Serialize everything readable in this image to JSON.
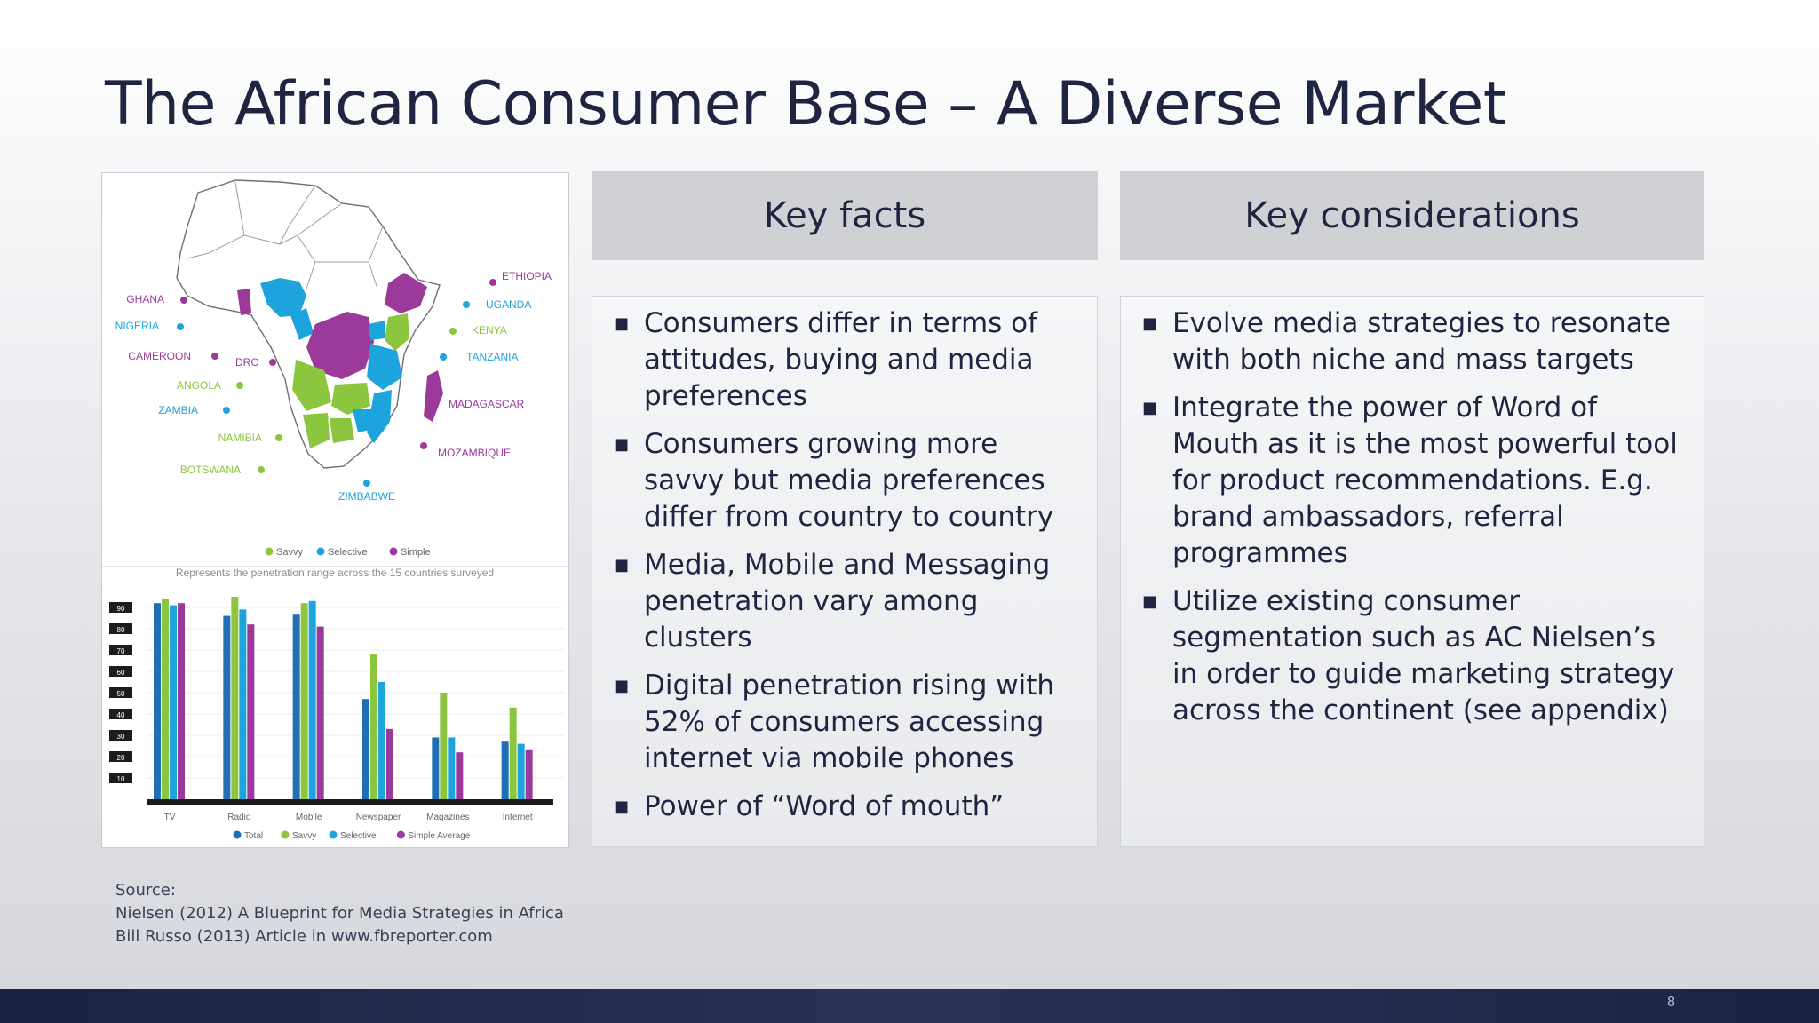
{
  "slide": {
    "title": "The African Consumer Base – A Diverse Market",
    "page_number": "8"
  },
  "figure": {
    "map_countries": [
      {
        "name": "ETHIOPIA",
        "segment": "simple"
      },
      {
        "name": "GHANA",
        "segment": "simple"
      },
      {
        "name": "UGANDA",
        "segment": "selective"
      },
      {
        "name": "NIGERIA",
        "segment": "selective"
      },
      {
        "name": "KENYA",
        "segment": "savvy"
      },
      {
        "name": "TANZANIA",
        "segment": "selective"
      },
      {
        "name": "CAMEROON",
        "segment": "simple"
      },
      {
        "name": "DRC",
        "segment": "simple"
      },
      {
        "name": "ANGOLA",
        "segment": "savvy"
      },
      {
        "name": "MADAGASCAR",
        "segment": "simple"
      },
      {
        "name": "ZAMBIA",
        "segment": "selective"
      },
      {
        "name": "NAMIBIA",
        "segment": "savvy"
      },
      {
        "name": "MOZAMBIQUE",
        "segment": "simple"
      },
      {
        "name": "BOTSWANA",
        "segment": "savvy"
      },
      {
        "name": "ZIMBABWE",
        "segment": "selective"
      }
    ],
    "map_legend": [
      "Savvy",
      "Selective",
      "Simple"
    ],
    "caption": "Represents the penetration range across the 15 countries surveyed",
    "colors": {
      "total": "#1f6fb4",
      "savvy": "#8cc63f",
      "selective": "#1ea4dc",
      "simple": "#9b3a9a"
    }
  },
  "chart_data": {
    "type": "bar",
    "categories": [
      "TV",
      "Radio",
      "Mobile",
      "Newspaper",
      "Magazines",
      "Internet"
    ],
    "series": [
      {
        "name": "Total",
        "values": [
          92,
          86,
          87,
          47,
          29,
          27
        ]
      },
      {
        "name": "Savvy",
        "values": [
          94,
          95,
          92,
          68,
          50,
          43
        ]
      },
      {
        "name": "Selective",
        "values": [
          91,
          89,
          93,
          55,
          29,
          26
        ]
      },
      {
        "name": "Simple Average",
        "values": [
          92,
          82,
          81,
          33,
          22,
          23
        ]
      }
    ],
    "ylim": [
      0,
      100
    ],
    "yticks": [
      "10",
      "20",
      "30",
      "40",
      "50",
      "60",
      "70",
      "80",
      "90"
    ],
    "legend": "bottom"
  },
  "key_facts": {
    "heading": "Key facts",
    "items": [
      "Consumers differ in terms of attitudes, buying and media preferences",
      "Consumers growing more savvy but media preferences differ from country to country",
      "Media, Mobile and Messaging penetration vary among clusters",
      "Digital penetration rising with 52% of consumers accessing internet via mobile phones",
      "Power of “Word of mouth”"
    ]
  },
  "key_considerations": {
    "heading": "Key considerations",
    "items": [
      "Evolve media strategies to resonate with both niche and mass targets",
      "Integrate the power of Word of Mouth as it is the most powerful tool for product recommendations.  E.g. brand ambassadors, referral programmes",
      "Utilize existing consumer segmentation such as AC Nielsen’s in order to guide marketing strategy across the continent (see appendix)"
    ]
  },
  "source": {
    "label": "Source:",
    "lines": [
      "Nielsen (2012) A Blueprint for Media Strategies in Africa",
      "Bill Russo (2013) Article in www.fbreporter.com"
    ]
  }
}
